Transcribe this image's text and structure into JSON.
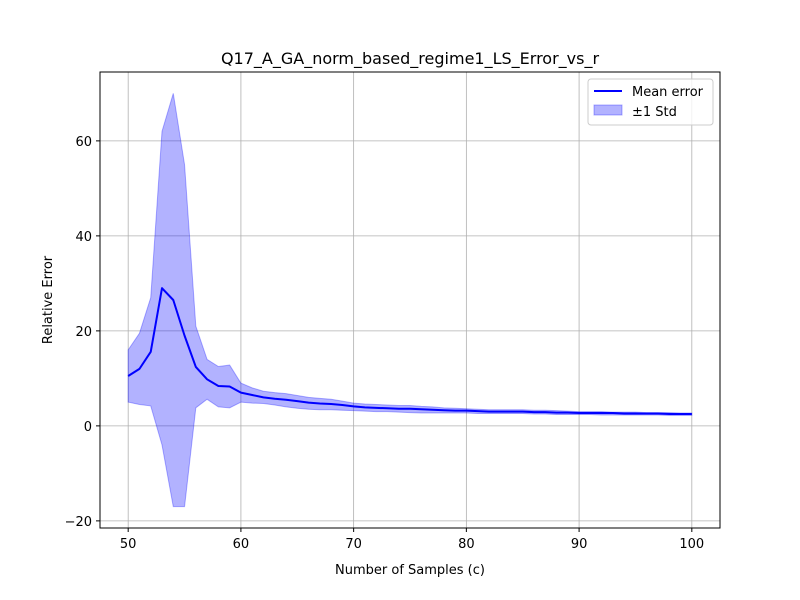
{
  "chart_data": {
    "type": "line",
    "title": "Q17_A_GA_norm_based_regime1_LS_Error_vs_r",
    "xlabel": "Number of Samples (c)",
    "ylabel": "Relative Error",
    "xlim": [
      47.5,
      102.5
    ],
    "ylim": [
      -21.5,
      74.5
    ],
    "xticks": [
      50,
      60,
      70,
      80,
      90,
      100
    ],
    "yticks": [
      -20,
      0,
      20,
      40,
      60
    ],
    "grid": true,
    "legend_position": "top-right",
    "x": [
      50,
      51,
      52,
      53,
      54,
      55,
      56,
      57,
      58,
      59,
      60,
      61,
      62,
      63,
      64,
      65,
      66,
      67,
      68,
      69,
      70,
      71,
      72,
      73,
      74,
      75,
      76,
      77,
      78,
      79,
      80,
      81,
      82,
      83,
      84,
      85,
      86,
      87,
      88,
      89,
      90,
      91,
      92,
      93,
      94,
      95,
      96,
      97,
      98,
      99,
      100
    ],
    "series": [
      {
        "name": "Mean error",
        "type": "line",
        "color": "#0000ff",
        "values": [
          10.5,
          12.0,
          15.6,
          29.0,
          26.5,
          19.0,
          12.4,
          9.8,
          8.4,
          8.3,
          7.0,
          6.5,
          6.0,
          5.7,
          5.5,
          5.2,
          4.9,
          4.7,
          4.6,
          4.4,
          4.1,
          3.9,
          3.8,
          3.7,
          3.6,
          3.6,
          3.5,
          3.4,
          3.3,
          3.2,
          3.2,
          3.1,
          3.0,
          3.0,
          3.0,
          3.0,
          2.9,
          2.9,
          2.8,
          2.8,
          2.7,
          2.7,
          2.7,
          2.7,
          2.6,
          2.6,
          2.6,
          2.6,
          2.5,
          2.5,
          2.5
        ]
      },
      {
        "name": "±1 Std",
        "type": "band",
        "color": "#0000ff",
        "upper": [
          16.0,
          19.5,
          27.0,
          62.0,
          70.0,
          55.0,
          21.0,
          14.0,
          12.5,
          12.8,
          9.0,
          8.0,
          7.3,
          7.0,
          6.8,
          6.4,
          6.0,
          5.8,
          5.6,
          5.2,
          4.8,
          4.6,
          4.5,
          4.4,
          4.3,
          4.3,
          4.1,
          4.0,
          3.8,
          3.7,
          3.6,
          3.5,
          3.4,
          3.4,
          3.4,
          3.4,
          3.3,
          3.3,
          3.2,
          3.1,
          3.0,
          3.0,
          3.0,
          2.9,
          2.9,
          2.9,
          2.8,
          2.8,
          2.8,
          2.7,
          2.7
        ],
        "lower": [
          5.0,
          4.5,
          4.2,
          -4.0,
          -17.0,
          -17.0,
          3.8,
          5.6,
          4.0,
          3.8,
          5.0,
          4.8,
          4.7,
          4.4,
          4.0,
          3.7,
          3.5,
          3.4,
          3.4,
          3.3,
          3.2,
          3.1,
          3.0,
          3.0,
          2.9,
          2.8,
          2.7,
          2.7,
          2.7,
          2.7,
          2.7,
          2.6,
          2.6,
          2.6,
          2.6,
          2.6,
          2.5,
          2.5,
          2.4,
          2.4,
          2.4,
          2.4,
          2.3,
          2.3,
          2.3,
          2.3,
          2.3,
          2.3,
          2.2,
          2.2,
          2.2
        ]
      }
    ],
    "legend": {
      "mean_label": "Mean error",
      "std_label": "±1 Std"
    }
  }
}
